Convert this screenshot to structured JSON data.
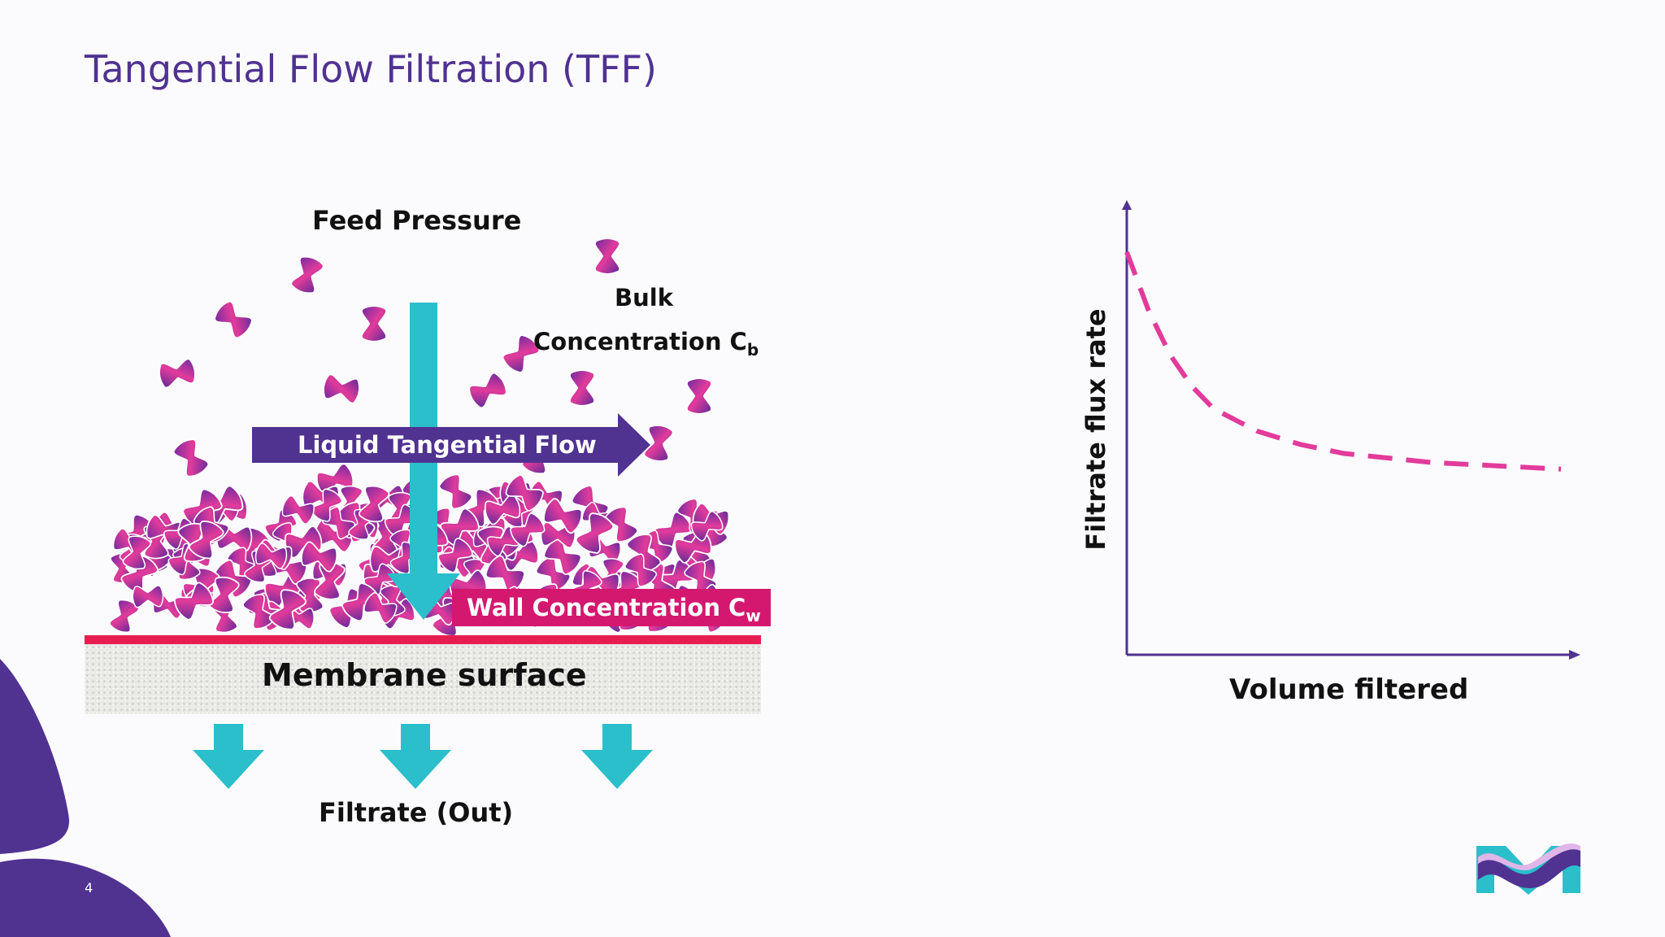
{
  "slide": {
    "title": "Tangential Flow Filtration (TFF)",
    "page_number": "4"
  },
  "diagram": {
    "feed_pressure": "Feed Pressure",
    "bulk_line1": "Bulk",
    "bulk_line2": "Concentration C",
    "bulk_sub": "b",
    "tangential_flow": "Liquid Tangential Flow",
    "wall_concentration": "Wall Concentration C",
    "wall_sub": "w",
    "membrane_surface": "Membrane surface",
    "filtrate_out": "Filtrate (Out)"
  },
  "chart_data": {
    "type": "line",
    "title": "",
    "xlabel": "Volume filtered",
    "ylabel": "Filtrate flux rate",
    "series": [
      {
        "name": "flux",
        "style": "dashed",
        "color": "#e23b9b",
        "x": [
          0,
          5,
          10,
          15,
          20,
          30,
          40,
          50,
          60,
          70,
          80,
          90,
          100
        ],
        "y": [
          90,
          77,
          67,
          60,
          55,
          50,
          47,
          45,
          44,
          43,
          42.5,
          42,
          41.5
        ]
      }
    ],
    "xlim": [
      0,
      100
    ],
    "ylim": [
      0,
      100
    ],
    "grid": false
  },
  "colors": {
    "title": "#503291",
    "teal": "#2bbecb",
    "purple": "#503291",
    "magenta": "#d4186f",
    "red": "#e61e50",
    "pink": "#e23b9b"
  },
  "icons": [
    "molecule-icon",
    "down-arrow-icon",
    "right-arrow-icon",
    "merck-logo-icon"
  ]
}
